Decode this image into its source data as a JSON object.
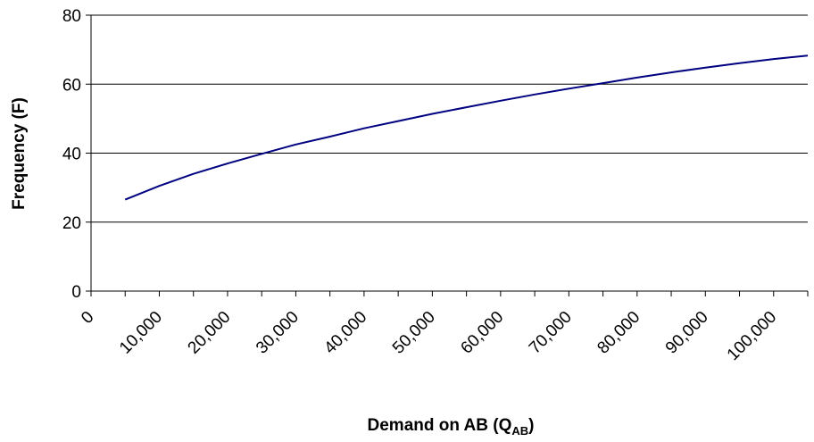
{
  "chart_data": {
    "type": "line",
    "title": "",
    "xlabel": "Demand on AB (Q",
    "xlabel_subscript": "AB",
    "xlabel_suffix": ")",
    "ylabel": "Frequency (F)",
    "xlim": [
      0,
      105000
    ],
    "ylim": [
      0,
      80
    ],
    "x_ticks": [
      0,
      10000,
      20000,
      30000,
      40000,
      50000,
      60000,
      70000,
      80000,
      90000,
      100000
    ],
    "x_tick_labels": [
      "0",
      "10,000",
      "20,000",
      "30,000",
      "40,000",
      "50,000",
      "60,000",
      "70,000",
      "80,000",
      "90,000",
      "100,000"
    ],
    "y_ticks": [
      0,
      20,
      40,
      60,
      80
    ],
    "y_tick_labels": [
      "0",
      "20",
      "40",
      "60",
      "80"
    ],
    "grid": "horizontal",
    "legend": "none",
    "series": [
      {
        "color": "#000080",
        "x": [
          5000,
          10000,
          15000,
          20000,
          25000,
          30000,
          35000,
          40000,
          45000,
          50000,
          55000,
          60000,
          65000,
          70000,
          75000,
          80000,
          85000,
          90000,
          95000,
          100000,
          105000
        ],
        "y": [
          26.5,
          30.5,
          34,
          37,
          39.8,
          42.5,
          44.8,
          47.2,
          49.3,
          51.4,
          53.3,
          55.2,
          57,
          58.7,
          60.3,
          61.9,
          63.4,
          64.8,
          66.1,
          67.3,
          68.3
        ]
      }
    ]
  }
}
